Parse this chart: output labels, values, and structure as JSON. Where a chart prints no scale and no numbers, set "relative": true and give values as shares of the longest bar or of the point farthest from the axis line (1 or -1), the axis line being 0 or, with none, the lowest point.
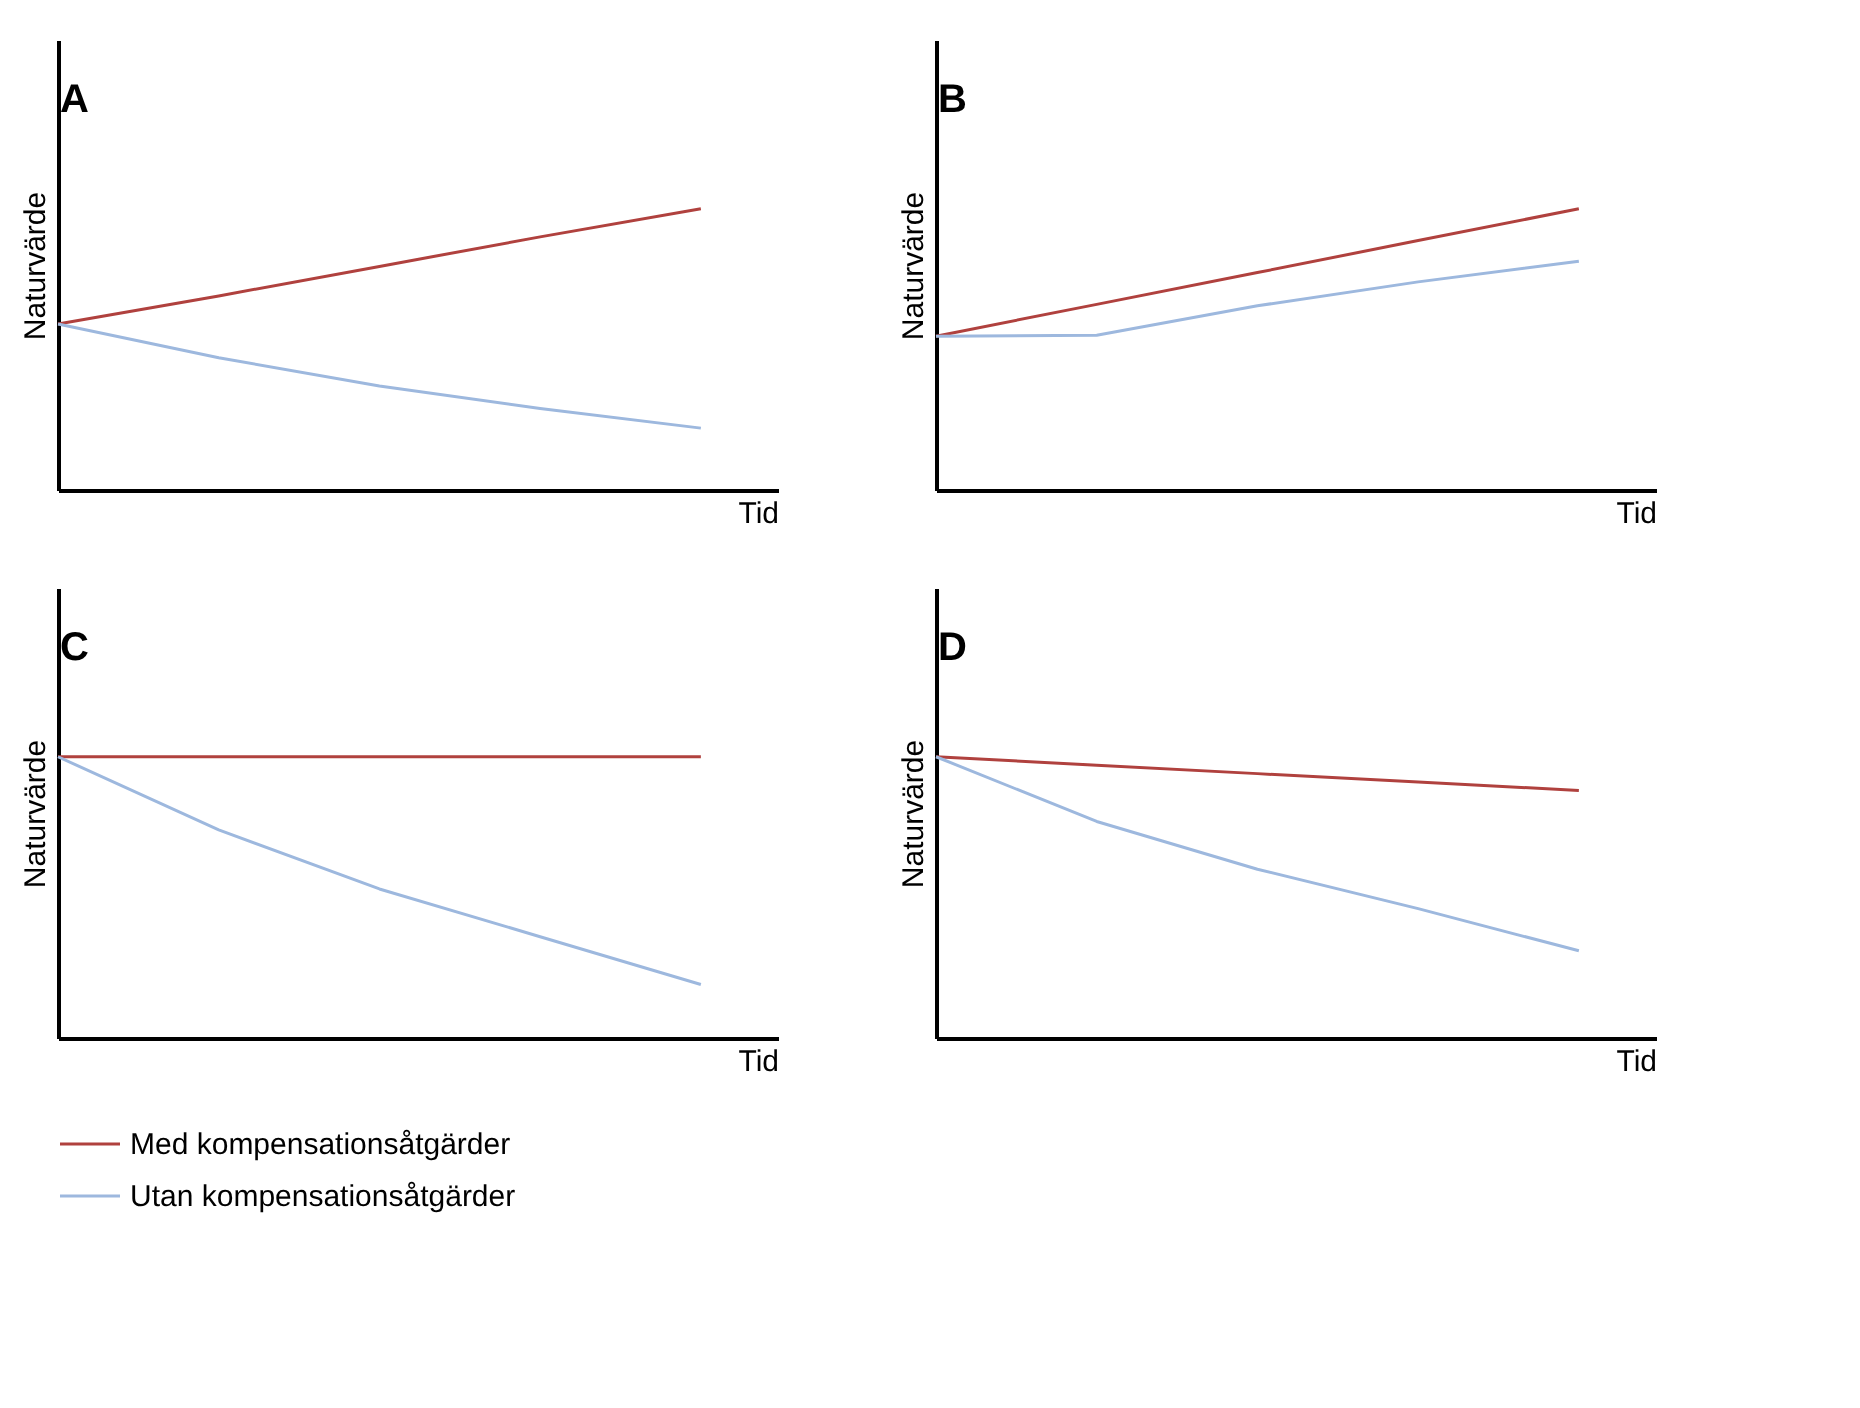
{
  "chart_data": [
    {
      "type": "line",
      "title": "A",
      "xlabel": "Tid",
      "ylabel": "Naturvärde",
      "relative": true,
      "legend": "bottom",
      "grid": false,
      "categories": [
        null,
        null,
        null,
        null,
        null
      ],
      "series": [
        {
          "name": "Med kompensationsåtgärder",
          "color": "#b0413e",
          "values": [
            0.59,
            0.69,
            0.795,
            0.9,
            1
          ]
        },
        {
          "name": "Utan kompensationsåtgärder",
          "color": "#9db8de",
          "values": [
            0.59,
            0.47,
            0.37,
            0.29,
            0.22
          ]
        }
      ]
    },
    {
      "type": "line",
      "title": "B",
      "xlabel": "Tid",
      "ylabel": "Naturvärde",
      "relative": true,
      "legend": "bottom",
      "grid": false,
      "categories": [
        null,
        null,
        null,
        null,
        null
      ],
      "series": [
        {
          "name": "Med kompensationsåtgärder",
          "color": "#b0413e",
          "values": [
            0.547,
            0.66,
            0.773,
            0.887,
            1
          ]
        },
        {
          "name": "Utan kompensationsåtgärder",
          "color": "#9db8de",
          "values": [
            0.547,
            0.55,
            0.655,
            0.74,
            0.813
          ]
        }
      ]
    },
    {
      "type": "line",
      "title": "C",
      "xlabel": "Tid",
      "ylabel": "Naturvärde",
      "relative": true,
      "legend": "bottom",
      "grid": false,
      "categories": [
        null,
        null,
        null,
        null,
        null
      ],
      "series": [
        {
          "name": "Med kompensationsåtgärder",
          "color": "#b0413e",
          "values": [
            1,
            1,
            1,
            1,
            1
          ]
        },
        {
          "name": "Utan kompensationsåtgärder",
          "color": "#9db8de",
          "values": [
            1,
            0.74,
            0.53,
            0.36,
            0.19
          ]
        }
      ]
    },
    {
      "type": "line",
      "title": "D",
      "xlabel": "Tid",
      "ylabel": "Naturvärde",
      "relative": true,
      "legend": "bottom",
      "grid": false,
      "categories": [
        null,
        null,
        null,
        null,
        null
      ],
      "series": [
        {
          "name": "Med kompensationsåtgärder",
          "color": "#b0413e",
          "values": [
            1,
            0.97,
            0.94,
            0.91,
            0.88
          ]
        },
        {
          "name": "Utan kompensationsåtgärder",
          "color": "#9db8de",
          "values": [
            1,
            0.77,
            0.6,
            0.46,
            0.31
          ]
        }
      ]
    }
  ]
}
